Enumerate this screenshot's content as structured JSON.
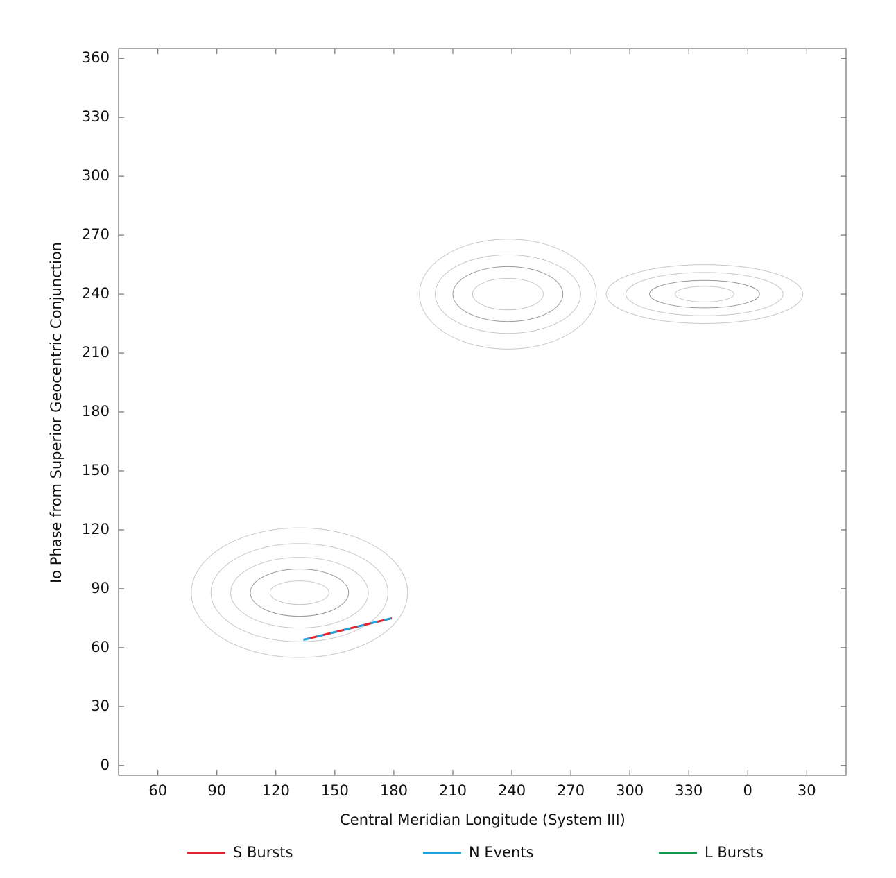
{
  "chart_data": {
    "type": "line",
    "x_label": "Central Meridian Longitude (System III)",
    "y_label": "Io Phase from Superior Geocentric Conjunction",
    "xlim": [
      40,
      410
    ],
    "ylim": [
      -5,
      365
    ],
    "xticks": [
      60,
      90,
      120,
      150,
      180,
      210,
      240,
      270,
      300,
      330,
      {
        "value": 360,
        "label": "0"
      },
      {
        "value": 390,
        "label": "30"
      }
    ],
    "yticks": [
      0,
      30,
      60,
      90,
      120,
      150,
      180,
      210,
      240,
      270,
      300,
      330,
      360
    ],
    "series": [
      {
        "name": "S Bursts",
        "color": "#e8202a",
        "x": [
          134,
          179
        ],
        "values": [
          64,
          75
        ]
      },
      {
        "name": "N Events",
        "color": "#1ea5e0",
        "x": [
          134,
          179
        ],
        "values": [
          64,
          75
        ]
      },
      {
        "name": "L Bursts",
        "color": "#12964a",
        "x": [],
        "values": []
      }
    ],
    "contours": [
      {
        "x": 132,
        "y": 88,
        "rx": 55,
        "ry": 33
      },
      {
        "x": 132,
        "y": 88,
        "rx": 45,
        "ry": 25
      },
      {
        "x": 132,
        "y": 88,
        "rx": 35,
        "ry": 18
      },
      {
        "x": 132,
        "y": 88,
        "rx": 25,
        "ry": 12
      },
      {
        "x": 132,
        "y": 88,
        "rx": 15,
        "ry": 6
      },
      {
        "x": 238,
        "y": 240,
        "rx": 45,
        "ry": 28
      },
      {
        "x": 238,
        "y": 240,
        "rx": 37,
        "ry": 20
      },
      {
        "x": 238,
        "y": 240,
        "rx": 28,
        "ry": 14
      },
      {
        "x": 238,
        "y": 240,
        "rx": 18,
        "ry": 8
      },
      {
        "x": 338,
        "y": 240,
        "rx": 50,
        "ry": 15
      },
      {
        "x": 338,
        "y": 240,
        "rx": 40,
        "ry": 11
      },
      {
        "x": 338,
        "y": 240,
        "rx": 28,
        "ry": 7
      },
      {
        "x": 338,
        "y": 240,
        "rx": 15,
        "ry": 4
      }
    ]
  }
}
